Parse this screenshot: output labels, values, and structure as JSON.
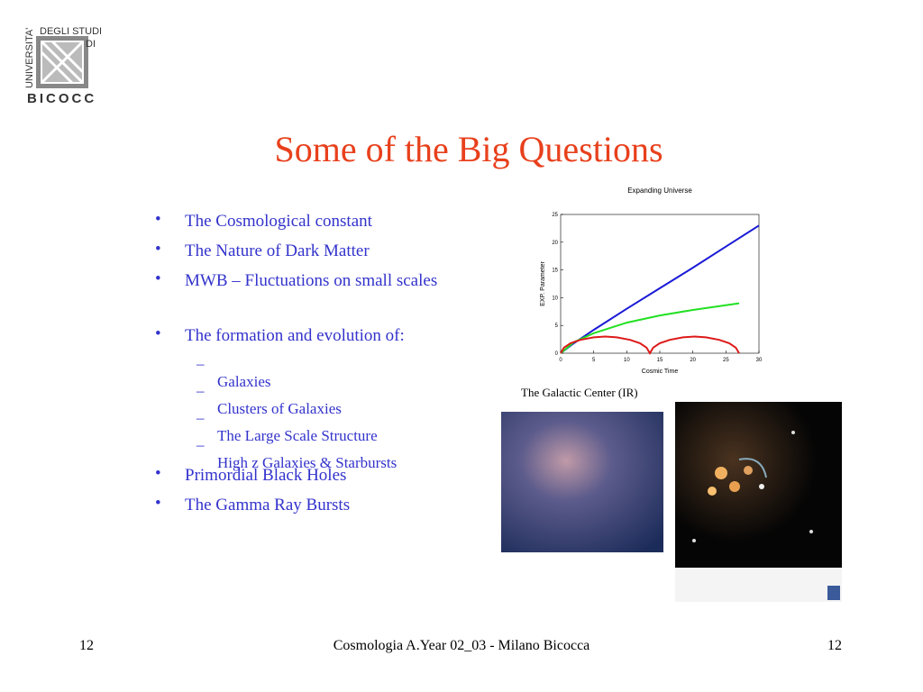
{
  "logo": {
    "side": "UNIVERSITA'",
    "top": "DEGLI STUDI",
    "middle": "DI",
    "bottom": "BICOCC"
  },
  "title": "Some of the Big Questions",
  "bullets": [
    {
      "text": "The Cosmological constant"
    },
    {
      "text": "The Nature of Dark Matter"
    },
    {
      "text": "MWB – Fluctuations on small scales"
    },
    {
      "text": "The formation and evolution of:",
      "sub": [
        "Galaxies",
        "Clusters of Galaxies",
        "The Large Scale Structure",
        "High z Galaxies & Starbursts"
      ]
    },
    {
      "text": "Primordial Black Holes"
    },
    {
      "text": "The Gamma Ray Bursts"
    }
  ],
  "chart": {
    "type": "line",
    "title": "Expanding Universe",
    "x_label": "Cosmic Time",
    "y_label": "EXP. Parameter",
    "xlim": [
      0,
      30
    ],
    "ylim": [
      0,
      25
    ],
    "xticks": [
      0,
      5,
      10,
      15,
      20,
      25,
      30
    ],
    "yticks": [
      0,
      5,
      10,
      15,
      20,
      25
    ],
    "series": [
      {
        "color": "#1a1ad6",
        "x": [
          0,
          2,
          5,
          10,
          15,
          20,
          25,
          30
        ],
        "values": [
          0,
          1.8,
          4.2,
          8,
          11.7,
          15.4,
          19.2,
          23
        ]
      },
      {
        "color": "#22e022",
        "x": [
          0,
          2,
          5,
          10,
          15,
          20,
          27
        ],
        "values": [
          0,
          2,
          3.6,
          5.5,
          6.8,
          7.8,
          9
        ]
      },
      {
        "color": "#dd1a1a",
        "x": [
          0,
          0.5,
          1.5,
          3,
          5,
          6.75,
          8.5,
          10.5,
          12,
          13,
          13.5,
          14,
          15,
          16.5,
          18.5,
          20.25,
          22,
          24,
          25.5,
          26.5,
          27
        ],
        "values": [
          0,
          1,
          1.8,
          2.4,
          2.85,
          3,
          2.85,
          2.4,
          1.8,
          1,
          0,
          1,
          1.8,
          2.4,
          2.85,
          3,
          2.85,
          2.4,
          1.8,
          1,
          0
        ]
      }
    ]
  },
  "caption": "The Galactic Center (IR)",
  "footer": {
    "left": "12",
    "center": "Cosmologia A.Year 02_03 - Milano Bicocca",
    "right": "12"
  }
}
